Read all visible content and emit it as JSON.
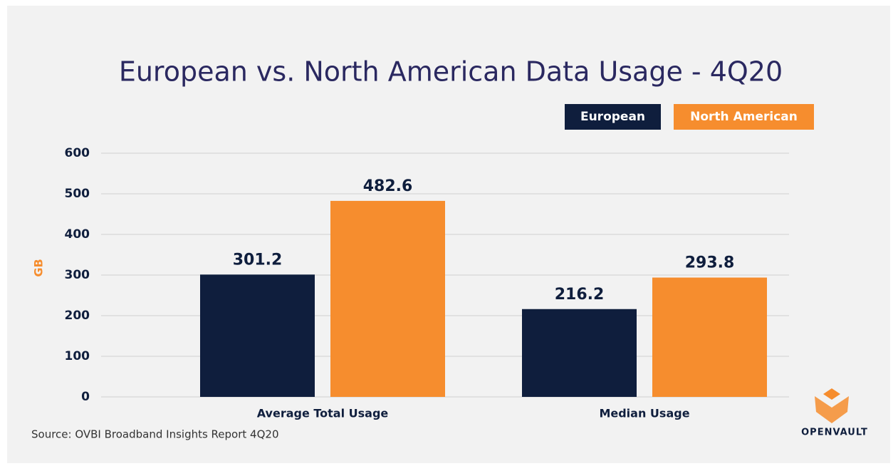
{
  "chart_data": {
    "type": "bar",
    "title": "European vs. North American Data Usage - 4Q20",
    "categories": [
      "Average Total Usage",
      "Median Usage"
    ],
    "series": [
      {
        "name": "European",
        "color": "#0f1e3d",
        "values": [
          301.2,
          216.2
        ]
      },
      {
        "name": "North American",
        "color": "#f68d2e",
        "values": [
          482.6,
          293.8
        ]
      }
    ],
    "ylabel": "GB",
    "ylim": [
      0,
      600
    ],
    "yticks": [
      0,
      100,
      200,
      300,
      400,
      500,
      600
    ],
    "grid": true,
    "source": "Source: OVBI Broadband Insights Report 4Q20"
  },
  "brand": "OpenVault"
}
